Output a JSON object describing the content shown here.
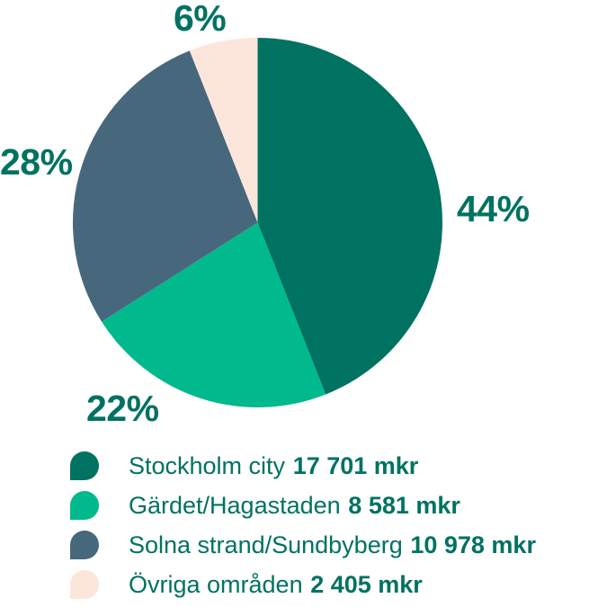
{
  "chart_data": {
    "type": "pie",
    "title": "",
    "unit": "mkr",
    "start_angle_deg": 0,
    "direction": "clockwise",
    "legend_position": "bottom",
    "text_color": "#007261",
    "slices": [
      {
        "label": "Stockholm city",
        "value": 17701,
        "value_label": "17 701 mkr",
        "pct": 44,
        "pct_label": "44%",
        "color": "#007261"
      },
      {
        "label": "Gärdet/Hagastaden",
        "value": 8581,
        "value_label": "8 581 mkr",
        "pct": 22,
        "pct_label": "22%",
        "color": "#00b98d"
      },
      {
        "label": "Solna strand/Sundbyberg",
        "value": 10978,
        "value_label": "10 978 mkr",
        "pct": 28,
        "pct_label": "28%",
        "color": "#47677d"
      },
      {
        "label": "Övriga områden",
        "value": 2405,
        "value_label": "2 405 mkr",
        "pct": 6,
        "pct_label": "6%",
        "color": "#fce6db"
      }
    ]
  }
}
